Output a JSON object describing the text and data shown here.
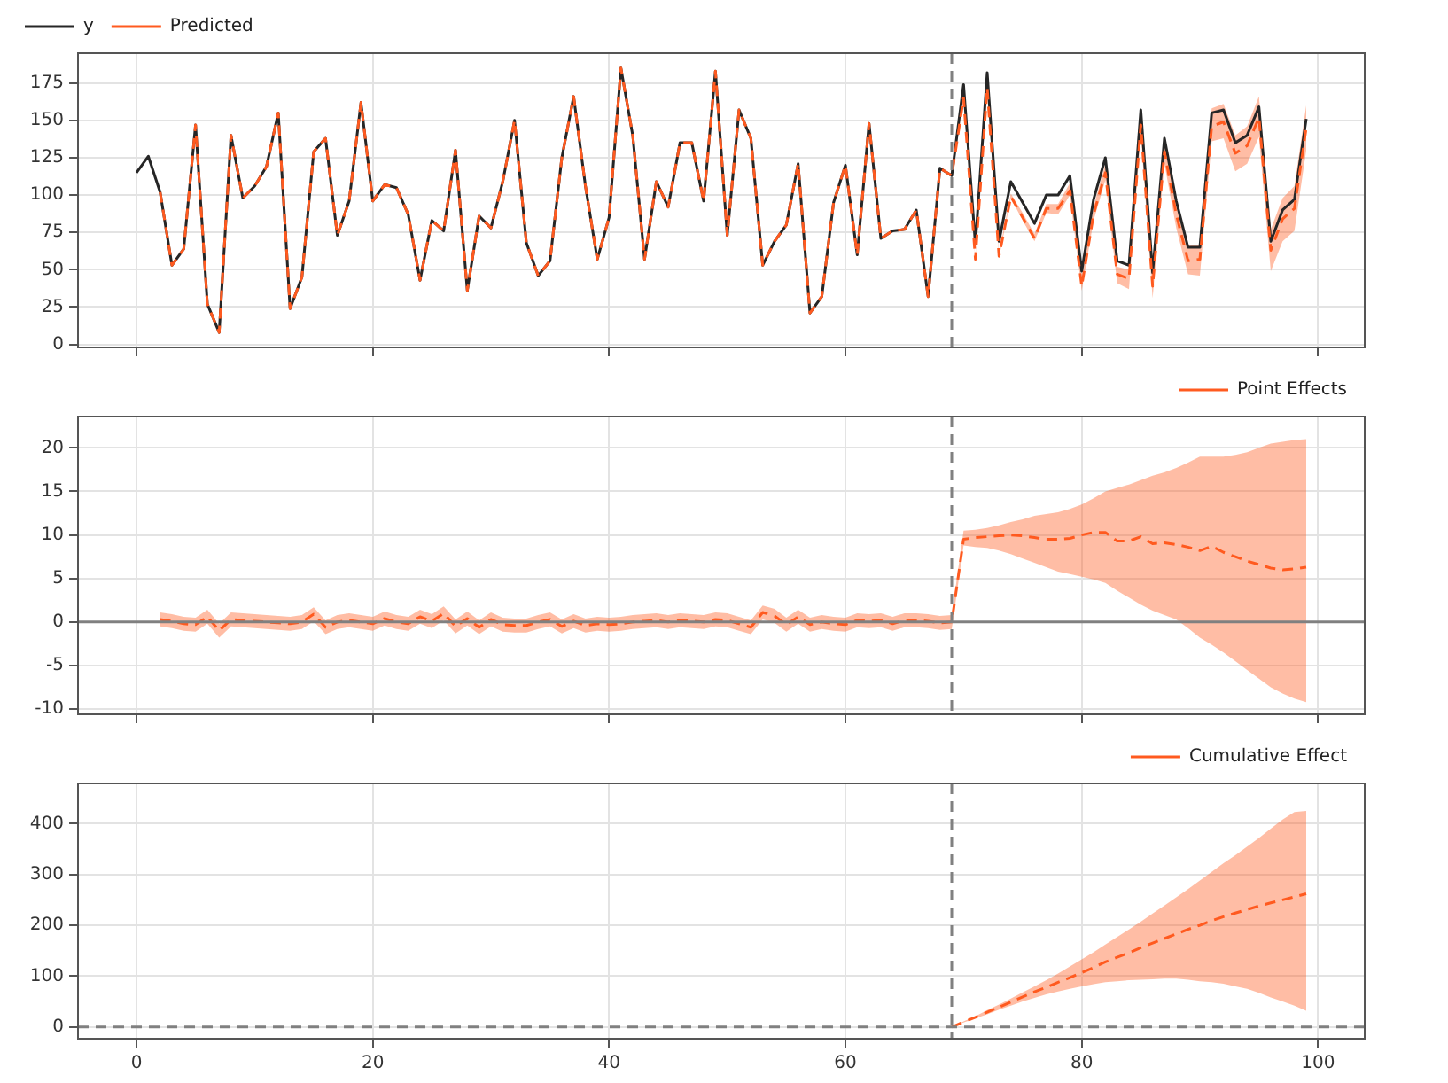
{
  "chart_data": [
    {
      "type": "line",
      "x": [
        0,
        1,
        2,
        3,
        4,
        5,
        6,
        7,
        8,
        9,
        10,
        11,
        12,
        13,
        14,
        15,
        16,
        17,
        18,
        19,
        20,
        21,
        22,
        23,
        24,
        25,
        26,
        27,
        28,
        29,
        30,
        31,
        32,
        33,
        34,
        35,
        36,
        37,
        38,
        39,
        40,
        41,
        42,
        43,
        44,
        45,
        46,
        47,
        48,
        49,
        50,
        51,
        52,
        53,
        54,
        55,
        56,
        57,
        58,
        59,
        60,
        61,
        62,
        63,
        64,
        65,
        66,
        67,
        68,
        69,
        70,
        71,
        72,
        73,
        74,
        75,
        76,
        77,
        78,
        79,
        80,
        81,
        82,
        83,
        84,
        85,
        86,
        87,
        88,
        89,
        90,
        91,
        92,
        93,
        94,
        95,
        96,
        97,
        98,
        99
      ],
      "xlim": [
        -4.95,
        103.95
      ],
      "xticks": [
        0,
        20,
        40,
        60,
        80,
        100
      ],
      "ylim": [
        -2,
        195
      ],
      "yticks": [
        0,
        25,
        50,
        75,
        100,
        125,
        150,
        175
      ],
      "grid": true,
      "legend": "top left",
      "tick_labels": "y",
      "series": [
        {
          "name": "y",
          "color": "#262626",
          "line_style": "solid",
          "values": [
            115,
            126,
            102,
            53,
            64,
            147,
            27,
            8,
            140,
            98,
            106,
            119,
            155,
            24,
            45,
            129,
            138,
            73,
            96,
            162,
            96,
            107,
            105,
            87,
            43,
            83,
            76,
            130,
            36,
            86,
            78,
            109,
            150,
            68,
            46,
            56,
            125,
            166,
            106,
            57,
            85,
            185,
            140,
            57,
            109,
            92,
            135,
            135,
            96,
            183,
            73,
            157,
            138,
            53,
            69,
            80,
            121,
            21,
            32,
            95,
            120,
            60,
            148,
            71,
            76,
            77,
            90,
            32,
            118,
            113,
            174,
            67,
            182,
            69,
            109,
            95,
            81,
            100,
            100,
            113,
            49,
            97,
            125,
            56,
            53,
            157,
            48,
            138,
            96,
            65,
            65,
            155,
            157,
            135,
            140,
            159,
            69,
            90,
            97,
            151
          ]
        },
        {
          "name": "Predicted",
          "color": "#ff5a1f",
          "line_style": "dashed",
          "values": [
            null,
            null,
            102,
            53,
            64,
            147,
            27,
            8,
            140,
            98,
            106,
            119,
            155,
            24,
            45,
            129,
            138,
            73,
            96,
            162,
            96,
            107,
            105,
            87,
            43,
            83,
            76,
            130,
            36,
            86,
            78,
            109,
            150,
            68,
            46,
            56,
            125,
            166,
            106,
            57,
            85,
            185,
            140,
            57,
            109,
            92,
            135,
            135,
            96,
            183,
            73,
            157,
            138,
            53,
            69,
            80,
            121,
            21,
            32,
            95,
            120,
            60,
            148,
            71,
            76,
            77,
            90,
            32,
            118,
            113,
            165,
            57,
            172,
            59,
            99,
            85,
            71,
            91,
            91,
            103,
            39,
            87,
            115,
            47,
            44,
            147,
            39,
            129,
            87,
            56,
            57,
            146,
            149,
            128,
            133,
            152,
            63,
            84,
            91,
            145
          ],
          "lower": [
            null,
            null,
            null,
            null,
            null,
            null,
            null,
            null,
            null,
            null,
            null,
            null,
            null,
            null,
            null,
            null,
            null,
            null,
            null,
            null,
            null,
            null,
            null,
            null,
            null,
            null,
            null,
            null,
            null,
            null,
            null,
            null,
            null,
            null,
            null,
            null,
            null,
            null,
            null,
            null,
            null,
            null,
            null,
            null,
            null,
            null,
            null,
            null,
            null,
            null,
            null,
            null,
            null,
            null,
            null,
            null,
            null,
            null,
            null,
            null,
            null,
            null,
            null,
            null,
            null,
            null,
            null,
            null,
            null,
            112,
            164,
            56,
            171,
            58,
            98,
            83,
            69,
            88,
            87,
            100,
            36,
            83,
            110,
            41,
            37,
            141,
            31,
            121,
            78,
            47,
            46,
            136,
            138,
            116,
            121,
            139,
            49,
            69,
            76,
            130
          ],
          "upper": [
            null,
            null,
            null,
            null,
            null,
            null,
            null,
            null,
            null,
            null,
            null,
            null,
            null,
            null,
            null,
            null,
            null,
            null,
            null,
            null,
            null,
            null,
            null,
            null,
            null,
            null,
            null,
            null,
            null,
            null,
            null,
            null,
            null,
            null,
            null,
            null,
            null,
            null,
            null,
            null,
            null,
            null,
            null,
            null,
            null,
            null,
            null,
            null,
            null,
            null,
            null,
            null,
            null,
            null,
            null,
            null,
            null,
            null,
            null,
            null,
            null,
            null,
            null,
            null,
            null,
            null,
            null,
            null,
            null,
            114,
            165,
            58,
            174,
            61,
            101,
            88,
            74,
            94,
            94,
            108,
            44,
            92,
            121,
            52,
            50,
            155,
            47,
            137,
            96,
            66,
            67,
            158,
            161,
            140,
            146,
            166,
            77,
            98,
            106,
            160
          ]
        }
      ],
      "ref_lines": [
        {
          "axis": "x",
          "value": 69,
          "color": "#808080",
          "line_style": "dashed"
        }
      ]
    },
    {
      "type": "line",
      "x": [
        2,
        3,
        4,
        5,
        6,
        7,
        8,
        9,
        10,
        11,
        12,
        13,
        14,
        15,
        16,
        17,
        18,
        19,
        20,
        21,
        22,
        23,
        24,
        25,
        26,
        27,
        28,
        29,
        30,
        31,
        32,
        33,
        34,
        35,
        36,
        37,
        38,
        39,
        40,
        41,
        42,
        43,
        44,
        45,
        46,
        47,
        48,
        49,
        50,
        51,
        52,
        53,
        54,
        55,
        56,
        57,
        58,
        59,
        60,
        61,
        62,
        63,
        64,
        65,
        66,
        67,
        68,
        69,
        70,
        71,
        72,
        73,
        74,
        75,
        76,
        77,
        78,
        79,
        80,
        81,
        82,
        83,
        84,
        85,
        86,
        87,
        88,
        89,
        90,
        91,
        92,
        93,
        94,
        95,
        96,
        97,
        98,
        99
      ],
      "xlim": [
        -4.95,
        103.95
      ],
      "xticks": [
        0,
        20,
        40,
        60,
        80,
        100
      ],
      "ylim": [
        -10.6,
        23.6
      ],
      "yticks": [
        -10,
        -5,
        0,
        5,
        10,
        15,
        20
      ],
      "grid": true,
      "legend": "top right",
      "tick_labels": "y",
      "series": [
        {
          "name": "Point Effects",
          "color": "#ff5a1f",
          "line_style": "dashed",
          "values": [
            0.3,
            0.1,
            -0.2,
            -0.3,
            0.6,
            -1.0,
            0.3,
            0.2,
            0.1,
            0.0,
            -0.1,
            -0.2,
            0.0,
            0.9,
            -0.6,
            0.0,
            0.2,
            0.0,
            -0.2,
            0.4,
            0.0,
            -0.2,
            0.6,
            0.1,
            1.0,
            -0.5,
            0.4,
            -0.6,
            0.3,
            -0.3,
            -0.4,
            -0.4,
            0.0,
            0.3,
            -0.5,
            0.1,
            -0.4,
            -0.2,
            -0.3,
            -0.2,
            0.0,
            0.1,
            0.2,
            0.0,
            0.2,
            0.1,
            0.0,
            0.3,
            0.2,
            -0.2,
            -0.6,
            1.1,
            0.7,
            -0.3,
            0.6,
            -0.3,
            0.0,
            -0.2,
            -0.3,
            0.2,
            0.1,
            0.2,
            -0.2,
            0.2,
            0.2,
            0.1,
            -0.1,
            0.0,
            9.5,
            9.7,
            9.8,
            9.9,
            10.0,
            9.9,
            9.7,
            9.5,
            9.5,
            9.6,
            10.0,
            10.3,
            10.3,
            9.3,
            9.3,
            9.8,
            9.0,
            9.1,
            8.9,
            8.6,
            8.2,
            8.7,
            8.0,
            7.5,
            7.0,
            6.6,
            6.2,
            6.0,
            6.1,
            6.3
          ],
          "lower": [
            -0.5,
            -0.7,
            -1.0,
            -1.1,
            -0.2,
            -1.8,
            -0.5,
            -0.6,
            -0.7,
            -0.8,
            -0.9,
            -1.0,
            -0.8,
            0.1,
            -1.4,
            -0.8,
            -0.6,
            -0.8,
            -1.0,
            -0.4,
            -0.8,
            -1.0,
            -0.2,
            -0.7,
            0.2,
            -1.3,
            -0.4,
            -1.4,
            -0.5,
            -1.1,
            -1.2,
            -1.2,
            -0.8,
            -0.5,
            -1.3,
            -0.7,
            -1.2,
            -1.0,
            -1.1,
            -1.0,
            -0.8,
            -0.7,
            -0.6,
            -0.8,
            -0.6,
            -0.7,
            -0.8,
            -0.5,
            -0.6,
            -1.0,
            -1.4,
            0.3,
            -0.1,
            -1.1,
            -0.2,
            -1.1,
            -0.8,
            -1.0,
            -1.1,
            -0.6,
            -0.7,
            -0.6,
            -1.0,
            -0.6,
            -0.6,
            -0.7,
            -0.9,
            -0.8,
            8.8,
            8.6,
            8.5,
            8.2,
            7.8,
            7.3,
            6.8,
            6.3,
            5.8,
            5.5,
            5.2,
            4.9,
            4.5,
            3.6,
            2.8,
            2.0,
            1.3,
            0.8,
            0.3,
            -0.7,
            -1.8,
            -2.6,
            -3.5,
            -4.5,
            -5.5,
            -6.5,
            -7.5,
            -8.2,
            -8.8,
            -9.2
          ],
          "upper": [
            1.1,
            0.9,
            0.6,
            0.5,
            1.4,
            -0.2,
            1.1,
            1.0,
            0.9,
            0.8,
            0.7,
            0.6,
            0.8,
            1.7,
            0.2,
            0.8,
            1.0,
            0.8,
            0.6,
            1.2,
            0.8,
            0.6,
            1.4,
            0.9,
            1.8,
            0.3,
            1.2,
            0.2,
            1.1,
            0.5,
            0.4,
            0.4,
            0.8,
            1.1,
            0.3,
            0.9,
            0.4,
            0.6,
            0.5,
            0.6,
            0.8,
            0.9,
            1.0,
            0.8,
            1.0,
            0.9,
            0.8,
            1.1,
            1.0,
            0.6,
            0.2,
            1.9,
            1.5,
            0.5,
            1.4,
            0.5,
            0.8,
            0.6,
            0.5,
            1.0,
            0.9,
            1.0,
            0.6,
            1.0,
            1.0,
            0.9,
            0.7,
            0.8,
            10.5,
            10.6,
            10.8,
            11.1,
            11.5,
            11.8,
            12.2,
            12.4,
            12.6,
            13.0,
            13.5,
            14.2,
            15.0,
            15.4,
            15.8,
            16.3,
            16.8,
            17.2,
            17.7,
            18.3,
            19.0,
            19.0,
            19.0,
            19.2,
            19.5,
            20.0,
            20.5,
            20.7,
            20.9,
            21.0
          ]
        }
      ],
      "ref_lines": [
        {
          "axis": "x",
          "value": 69,
          "color": "#808080",
          "line_style": "dashed"
        },
        {
          "axis": "y",
          "value": 0,
          "color": "#808080",
          "line_style": "solid"
        }
      ]
    },
    {
      "type": "line",
      "x": [
        69,
        70,
        71,
        72,
        73,
        74,
        75,
        76,
        77,
        78,
        79,
        80,
        81,
        82,
        83,
        84,
        85,
        86,
        87,
        88,
        89,
        90,
        91,
        92,
        93,
        94,
        95,
        96,
        97,
        98,
        99
      ],
      "xlim": [
        -4.95,
        103.95
      ],
      "xticks": [
        0,
        20,
        40,
        60,
        80,
        100
      ],
      "ylim": [
        -23,
        479
      ],
      "yticks": [
        0,
        100,
        200,
        300,
        400
      ],
      "grid": true,
      "legend": "top right",
      "series": [
        {
          "name": "Cumulative Effect",
          "color": "#ff5a1f",
          "line_style": "dashed",
          "values": [
            0,
            10,
            19,
            29,
            39,
            49,
            59,
            69,
            78,
            88,
            97,
            107,
            117,
            128,
            137,
            146,
            156,
            165,
            174,
            183,
            192,
            200,
            209,
            217,
            224,
            231,
            238,
            244,
            250,
            256,
            262
          ],
          "lower": [
            0,
            9,
            17,
            25,
            34,
            42,
            50,
            57,
            64,
            70,
            75,
            80,
            84,
            88,
            90,
            92,
            93,
            94,
            95,
            95,
            93,
            90,
            88,
            85,
            80,
            75,
            67,
            58,
            50,
            42,
            32
          ],
          "upper": [
            0,
            11,
            21,
            33,
            44,
            56,
            68,
            80,
            92,
            105,
            119,
            133,
            147,
            162,
            177,
            192,
            207,
            223,
            239,
            255,
            271,
            288,
            305,
            322,
            338,
            355,
            372,
            390,
            408,
            423,
            425
          ]
        }
      ],
      "ref_lines": [
        {
          "axis": "x",
          "value": 69,
          "color": "#808080",
          "line_style": "dashed"
        },
        {
          "axis": "y",
          "value": 0,
          "color": "#808080",
          "line_style": "dashed"
        }
      ]
    }
  ]
}
